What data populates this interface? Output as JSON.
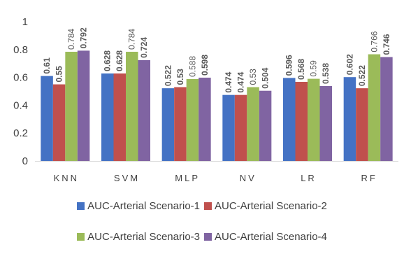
{
  "chart_data": {
    "type": "bar",
    "title": "",
    "xlabel": "",
    "ylabel": "",
    "categories": [
      "KNN",
      "SVM",
      "MLP",
      "NV",
      "LR",
      "RF"
    ],
    "ylim": [
      0,
      1
    ],
    "yticks": [
      "0",
      "0.2",
      "0.4",
      "0.6",
      "0.8",
      "1"
    ],
    "grid": false,
    "legend_position": "bottom",
    "series": [
      {
        "name": "AUC-Arterial Scenario-1",
        "color": "#4472C4",
        "values": [
          0.61,
          0.628,
          0.522,
          0.474,
          0.596,
          0.602
        ],
        "labels": [
          "0.61",
          "0.628",
          "0.522",
          "0.474",
          "0.596",
          "0.602"
        ]
      },
      {
        "name": "AUC-Arterial Scenario-2",
        "color": "#C0504D",
        "values": [
          0.55,
          0.628,
          0.53,
          0.474,
          0.568,
          0.522
        ],
        "labels": [
          "0.55",
          "0.628",
          "0.53",
          "0.474",
          "0.568",
          "0.522"
        ]
      },
      {
        "name": "AUC-Arterial Scenario-3",
        "color": "#9BBB59",
        "values": [
          0.784,
          0.784,
          0.588,
          0.53,
          0.59,
          0.766
        ],
        "labels": [
          "0.784",
          "0.784",
          "0.588",
          "0.53",
          "0.59",
          "0.766"
        ]
      },
      {
        "name": "AUC-Arterial Scenario-4",
        "color": "#8064A2",
        "values": [
          0.792,
          0.724,
          0.598,
          0.504,
          0.538,
          0.746
        ],
        "labels": [
          "0.792",
          "0.724",
          "0.598",
          "0.504",
          "0.538",
          "0.746"
        ]
      }
    ]
  }
}
